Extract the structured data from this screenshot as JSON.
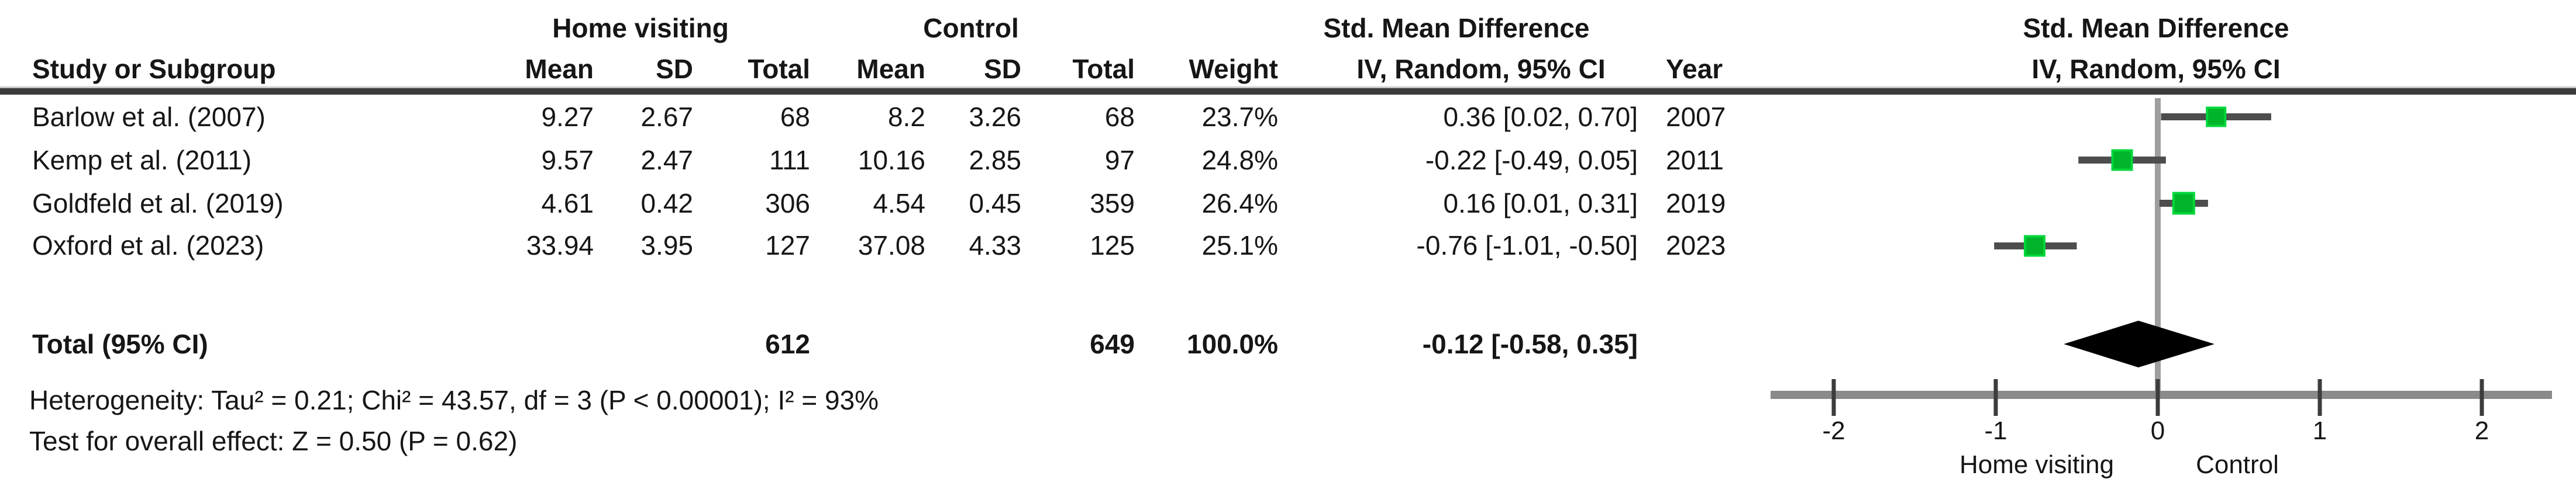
{
  "table": {
    "group_headers": {
      "experimental": "Home visiting",
      "control": "Control",
      "smd": "Std. Mean Difference",
      "smd_plot": "Std. Mean Difference"
    },
    "columns": {
      "study": "Study or Subgroup",
      "mean": "Mean",
      "sd": "SD",
      "total": "Total",
      "mean2": "Mean",
      "sd2": "SD",
      "total2": "Total",
      "weight": "Weight",
      "iv": "IV, Random, 95% CI",
      "year": "Year",
      "iv_plot": "IV, Random, 95% CI"
    },
    "rows": [
      {
        "study": "Barlow et al. (2007)",
        "mean1": "9.27",
        "sd1": "2.67",
        "total1": "68",
        "mean2": "8.2",
        "sd2": "3.26",
        "total2": "68",
        "weight": "23.7%",
        "ci": "0.36 [0.02, 0.70]",
        "year": "2007"
      },
      {
        "study": "Kemp et al. (2011)",
        "mean1": "9.57",
        "sd1": "2.47",
        "total1": "111",
        "mean2": "10.16",
        "sd2": "2.85",
        "total2": "97",
        "weight": "24.8%",
        "ci": "-0.22 [-0.49, 0.05]",
        "year": "2011"
      },
      {
        "study": "Goldfeld et al. (2019)",
        "mean1": "4.61",
        "sd1": "0.42",
        "total1": "306",
        "mean2": "4.54",
        "sd2": "0.45",
        "total2": "359",
        "weight": "26.4%",
        "ci": "0.16 [0.01, 0.31]",
        "year": "2019"
      },
      {
        "study": "Oxford et al. (2023)",
        "mean1": "33.94",
        "sd1": "3.95",
        "total1": "127",
        "mean2": "37.08",
        "sd2": "4.33",
        "total2": "125",
        "weight": "25.1%",
        "ci": "-0.76 [-1.01, -0.50]",
        "year": "2023"
      }
    ],
    "total_row": {
      "label": "Total (95% CI)",
      "total1": "612",
      "total2": "649",
      "weight": "100.0%",
      "ci": "-0.12 [-0.58, 0.35]"
    },
    "footer": {
      "heterogeneity": "Heterogeneity: Tau² = 0.21; Chi² = 43.57, df = 3 (P < 0.00001); I² = 93%",
      "overall_effect": "Test for overall effect: Z = 0.50 (P = 0.62)"
    }
  },
  "chart_data": {
    "type": "scatter",
    "variant": "forest-plot",
    "title": "Std. Mean Difference",
    "subtitle": "IV, Random, 95% CI",
    "effect_measure": "Std. Mean Difference",
    "model": "IV, Random, 95% CI",
    "studies": [
      {
        "name": "Barlow et al. (2007)",
        "year": 2007,
        "estimate": 0.36,
        "ci_low": 0.02,
        "ci_high": 0.7,
        "weight_pct": 23.7
      },
      {
        "name": "Kemp et al. (2011)",
        "year": 2011,
        "estimate": -0.22,
        "ci_low": -0.49,
        "ci_high": 0.05,
        "weight_pct": 24.8
      },
      {
        "name": "Goldfeld et al. (2019)",
        "year": 2019,
        "estimate": 0.16,
        "ci_low": 0.01,
        "ci_high": 0.31,
        "weight_pct": 26.4
      },
      {
        "name": "Oxford et al. (2023)",
        "year": 2023,
        "estimate": -0.76,
        "ci_low": -1.01,
        "ci_high": -0.5,
        "weight_pct": 25.1
      }
    ],
    "total": {
      "label": "Total (95% CI)",
      "estimate": -0.12,
      "ci_low": -0.58,
      "ci_high": 0.35,
      "n_experimental": 612,
      "n_control": 649,
      "weight_pct": 100.0
    },
    "x_ticks": [
      -2,
      -1,
      0,
      1,
      2
    ],
    "xlim": [
      -2.4,
      2.45
    ],
    "zero_line": 0,
    "xlabel_left": "Home visiting",
    "xlabel_right": "Control",
    "grid": false,
    "legend": "none"
  },
  "colors": {
    "marker_green": "#00b42a",
    "marker_green_edge": "#00d73b",
    "ci_line": "#4d4d4d",
    "diamond": "#000000",
    "axis_bar": "#8a8a8a",
    "tick": "#3c3c3c",
    "zero_line": "#9e9e9e",
    "header_rule": "#3b3b3b",
    "text": "#161616"
  }
}
